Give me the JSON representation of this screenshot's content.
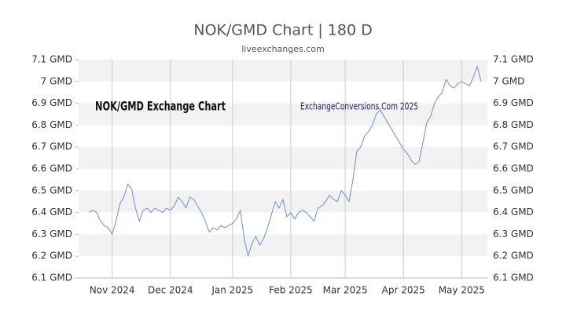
{
  "chart_data": {
    "type": "line",
    "title": "NOK/GMD Chart | 180 D",
    "subtitle": "liveexchanges.com",
    "annotations": [
      "NOK/GMD Exchange Chart",
      "ExchangeConversions.Com 2025"
    ],
    "categories": [
      null,
      null,
      null,
      null,
      null,
      null,
      "Nov 2024",
      null,
      null,
      null,
      null,
      null,
      null,
      null,
      null,
      null,
      null,
      null,
      null,
      null,
      null,
      "Dec 2024",
      null,
      null,
      null,
      null,
      null,
      null,
      null,
      null,
      null,
      null,
      null,
      null,
      null,
      null,
      null,
      "Jan 2025",
      null,
      null,
      null,
      null,
      null,
      null,
      null,
      null,
      null,
      null,
      null,
      null,
      null,
      null,
      "Feb 2025",
      null,
      null,
      null,
      null,
      null,
      null,
      null,
      null,
      null,
      null,
      null,
      null,
      null,
      "Mar 2025",
      null,
      null,
      null,
      null,
      null,
      null,
      null,
      null,
      null,
      null,
      null,
      null,
      null,
      null,
      "Apr 2025",
      null,
      null,
      null,
      null,
      null,
      null,
      null,
      null,
      null,
      null,
      null,
      null,
      null,
      null,
      "May 2025",
      null,
      null,
      null,
      null,
      null
    ],
    "series": [
      {
        "name": "NOK/GMD",
        "color": "#6b8fd9",
        "values": [
          6.4,
          6.41,
          6.4,
          6.36,
          6.34,
          6.33,
          6.3,
          6.36,
          6.44,
          6.47,
          6.53,
          6.51,
          6.42,
          6.36,
          6.41,
          6.42,
          6.4,
          6.42,
          6.41,
          6.4,
          6.42,
          6.41,
          6.43,
          6.47,
          6.45,
          6.42,
          6.47,
          6.46,
          6.43,
          6.4,
          6.36,
          6.31,
          6.33,
          6.32,
          6.34,
          6.33,
          6.34,
          6.35,
          6.37,
          6.41,
          6.28,
          6.2,
          6.26,
          6.29,
          6.25,
          6.28,
          6.33,
          6.39,
          6.45,
          6.42,
          6.46,
          6.38,
          6.4,
          6.37,
          6.4,
          6.41,
          6.4,
          6.38,
          6.36,
          6.42,
          6.43,
          6.45,
          6.48,
          6.46,
          6.45,
          6.5,
          6.48,
          6.45,
          6.55,
          6.68,
          6.7,
          6.75,
          6.77,
          6.8,
          6.85,
          6.87,
          6.84,
          6.81,
          6.78,
          6.75,
          6.72,
          6.69,
          6.67,
          6.64,
          6.62,
          6.63,
          6.72,
          6.81,
          6.84,
          6.9,
          6.93,
          6.95,
          7.01,
          6.98,
          6.97,
          6.99,
          7.0,
          6.99,
          6.98,
          7.02,
          7.07,
          7.0
        ]
      }
    ],
    "ylim": [
      6.1,
      7.1
    ],
    "yticks": [
      {
        "value": 6.1,
        "label": "6.1 GMD"
      },
      {
        "value": 6.2,
        "label": "6.2 GMD"
      },
      {
        "value": 6.3,
        "label": "6.3 GMD"
      },
      {
        "value": 6.4,
        "label": "6.4 GMD"
      },
      {
        "value": 6.5,
        "label": "6.5 GMD"
      },
      {
        "value": 6.6,
        "label": "6.6 GMD"
      },
      {
        "value": 6.7,
        "label": "6.7 GMD"
      },
      {
        "value": 6.8,
        "label": "6.8 GMD"
      },
      {
        "value": 6.9,
        "label": "6.9 GMD"
      },
      {
        "value": 7,
        "label": "7 GMD"
      },
      {
        "value": 7.1,
        "label": "7.1 GMD"
      }
    ],
    "grid": true,
    "band_color": "#f2f2f2"
  }
}
